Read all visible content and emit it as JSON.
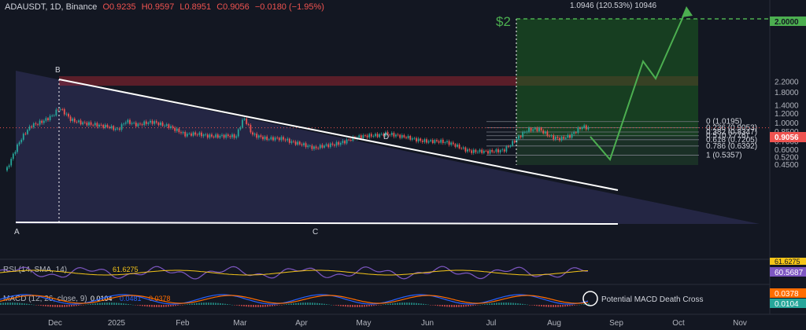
{
  "header": {
    "symbol": "ADAUSDT, 1D, Binance",
    "open": "O0.9235",
    "high": "H0.9597",
    "low": "L0.8951",
    "close": "C0.9056",
    "change": "−0.0180 (−1.95%)"
  },
  "chart_data": {
    "type": "candlestick",
    "x_ticks": [
      "Dec",
      "2025",
      "Feb",
      "Mar",
      "Apr",
      "May",
      "Jun",
      "Jul",
      "Aug",
      "Sep",
      "Oct",
      "Nov"
    ],
    "price_axis_ticks": [
      "2.2000",
      "1.8000",
      "1.4000",
      "1.2000",
      "1.0000",
      "0.8500",
      "0.7000",
      "0.6000",
      "0.5200",
      "0.4500"
    ],
    "price_scale": "log",
    "current_price": "0.9056",
    "target_price": "2.0000",
    "target_note": "$2",
    "projection_label": "1.0946 (120.53%) 10946",
    "point_labels": [
      "A",
      "B",
      "C",
      "D"
    ],
    "fibonacci": [
      {
        "level": "0 (1.0195)",
        "value": 1.0195
      },
      {
        "level": "0.236 (0.9053)",
        "value": 0.9053
      },
      {
        "level": "0.382 (0.8347)",
        "value": 0.8347
      },
      {
        "level": "0.5 (0.7776)",
        "value": 0.7776
      },
      {
        "level": "0.618 (0.7205)",
        "value": 0.7205
      },
      {
        "level": "0.786 (0.6392)",
        "value": 0.6392
      },
      {
        "level": "1 (0.5357)",
        "value": 0.5357
      }
    ],
    "rsi": {
      "label": "RSI (14, SMA, 14)",
      "value": "61.6275",
      "axis_value": "60.5687",
      "axis_value_top": "61.6275"
    },
    "macd": {
      "label": "MACD (12, 26, close, 9)",
      "hist": "0.0104",
      "macd": "0.0481",
      "signal": "0.0378",
      "axis_values": [
        "0.0378",
        "0.0104"
      ]
    },
    "annotation": "Potential MACD Death Cross",
    "colors": {
      "up": "#26a69a",
      "down": "#ef5350",
      "target": "#4caf50",
      "rsi": "#7e57c2",
      "macd": "#2962ff",
      "signal": "#ff6d00",
      "triangle": "#3a3a6e"
    }
  }
}
